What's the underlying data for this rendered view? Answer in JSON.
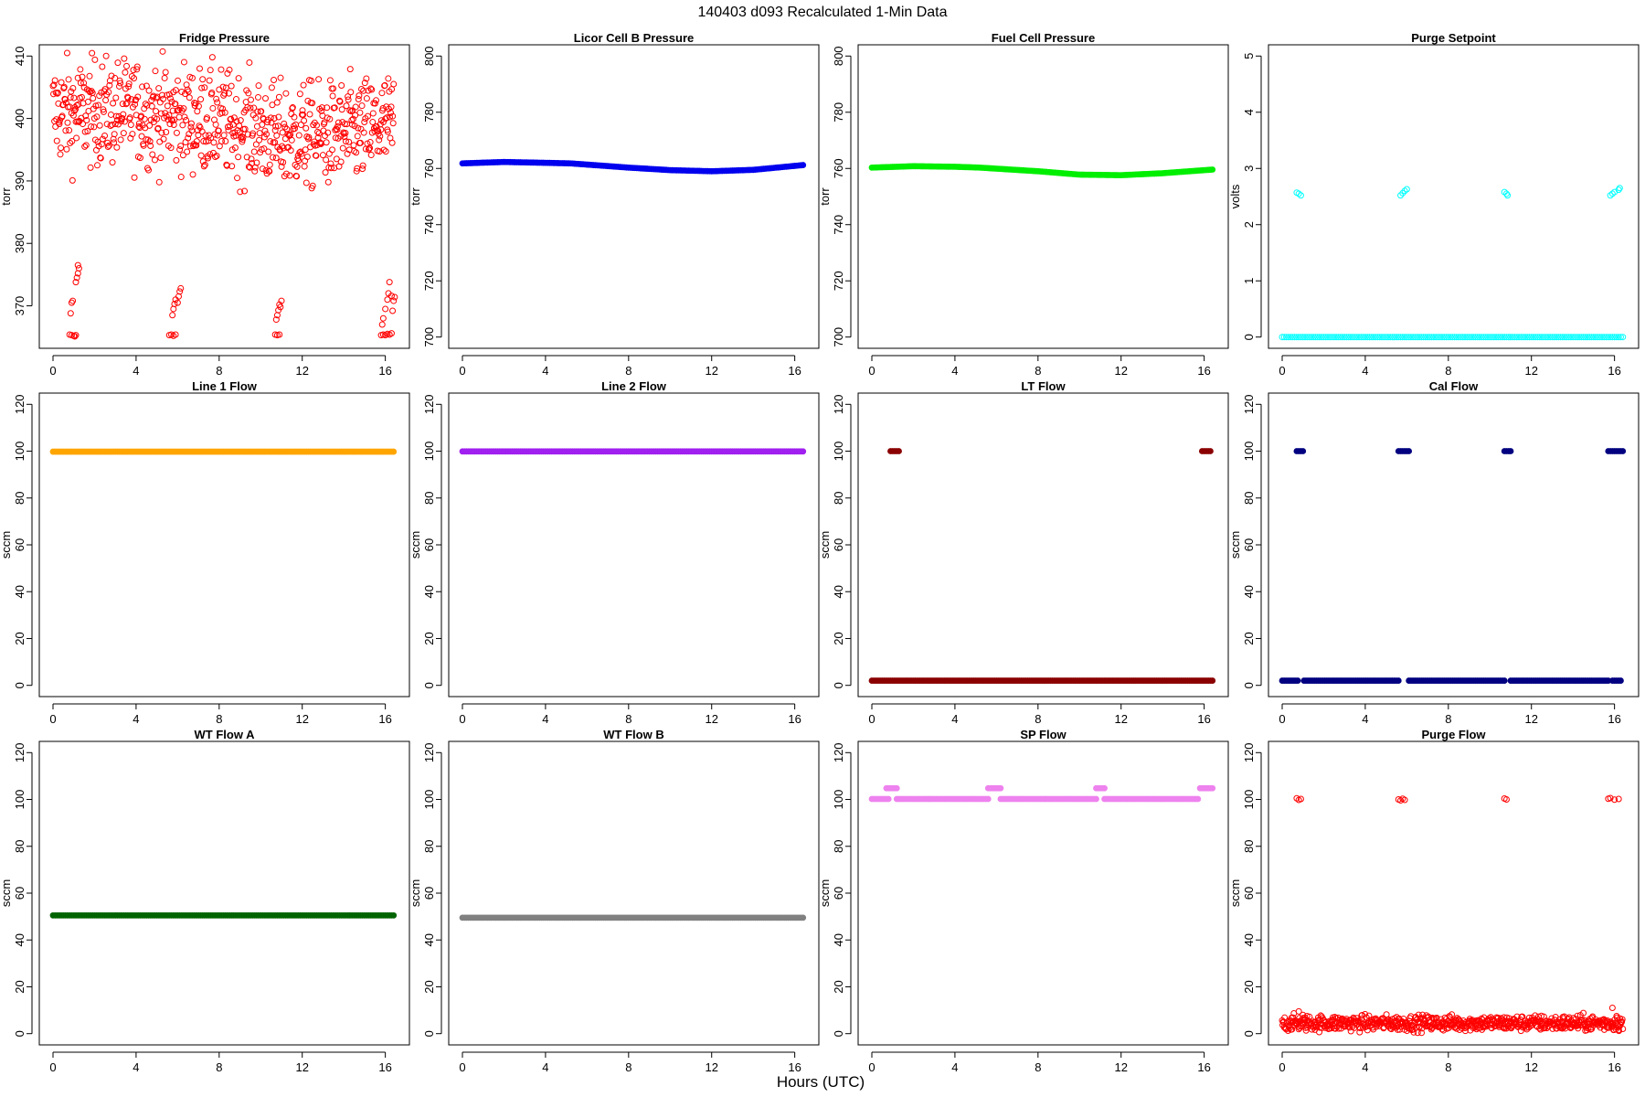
{
  "figure": {
    "title": "140403   d093   Recalculated 1-Min Data",
    "xlabel": "Hours (UTC)"
  },
  "colors": {
    "red": "#ff0000",
    "blue": "#0000ee",
    "green": "#00ee00",
    "cyan": "#00ffff",
    "orange": "#ffa500",
    "purple": "#a020f0",
    "darkred": "#8b0000",
    "navy": "#000080",
    "darkgreen": "#006400",
    "gray": "#808080",
    "violet": "#ee82ee"
  },
  "chart_data": [
    {
      "id": "fridge-pressure",
      "type": "scatter",
      "title": "Fridge Pressure",
      "ylabel": "torr",
      "xlim": [
        0,
        16.5
      ],
      "ylim": [
        365,
        410
      ],
      "xticks": [
        0,
        4,
        8,
        12,
        16
      ],
      "yticks": [
        370,
        380,
        390,
        400,
        410
      ],
      "color": "#ff0000",
      "marker": "open-circle",
      "series": [
        {
          "kind": "noise",
          "x_range": [
            0,
            16.4
          ],
          "y_center": 399.5,
          "y_spread": 5.5,
          "trend": [
            [
              0,
              401
            ],
            [
              4,
              401
            ],
            [
              8,
              399.5
            ],
            [
              11,
              397
            ],
            [
              14,
              397.5
            ],
            [
              16.4,
              399
            ]
          ],
          "n": 700
        },
        {
          "kind": "spikes",
          "points": [
            [
              0.8,
              365.4
            ],
            [
              0.9,
              365.3
            ],
            [
              1.0,
              365.2
            ],
            [
              1.05,
              365.1
            ],
            [
              1.1,
              365.3
            ],
            [
              0.85,
              368.8
            ],
            [
              0.9,
              370.5
            ],
            [
              0.95,
              370.8
            ],
            [
              1.1,
              373.8
            ],
            [
              1.15,
              374.5
            ],
            [
              1.2,
              375.2
            ],
            [
              1.25,
              376.0
            ],
            [
              1.2,
              376.5
            ],
            [
              5.6,
              365.3
            ],
            [
              5.7,
              365.4
            ],
            [
              5.8,
              365.2
            ],
            [
              5.9,
              365.4
            ],
            [
              5.75,
              368.5
            ],
            [
              5.8,
              369.5
            ],
            [
              5.85,
              370.3
            ],
            [
              5.9,
              371.0
            ],
            [
              6.0,
              370.5
            ],
            [
              6.05,
              371.5
            ],
            [
              6.1,
              372.3
            ],
            [
              6.15,
              372.8
            ],
            [
              10.7,
              365.4
            ],
            [
              10.8,
              365.3
            ],
            [
              10.9,
              365.4
            ],
            [
              10.75,
              367.8
            ],
            [
              10.8,
              368.5
            ],
            [
              10.85,
              369.3
            ],
            [
              10.9,
              370.2
            ],
            [
              11.0,
              370.8
            ],
            [
              10.95,
              369.8
            ],
            [
              15.8,
              365.3
            ],
            [
              15.9,
              365.4
            ],
            [
              16.0,
              365.3
            ],
            [
              16.1,
              365.5
            ],
            [
              16.2,
              365.4
            ],
            [
              16.3,
              365.6
            ],
            [
              15.85,
              367.0
            ],
            [
              15.9,
              368.0
            ],
            [
              16.0,
              369.5
            ],
            [
              16.1,
              371.0
            ],
            [
              16.15,
              372.0
            ],
            [
              16.2,
              373.8
            ],
            [
              16.3,
              371.6
            ],
            [
              16.4,
              370.8
            ],
            [
              16.35,
              369.2
            ],
            [
              16.45,
              371.4
            ]
          ]
        }
      ]
    },
    {
      "id": "licor-cell-b-pressure",
      "type": "scatter",
      "title": "Licor Cell B Pressure",
      "ylabel": "torr",
      "xlim": [
        0,
        16.5
      ],
      "ylim": [
        700,
        800
      ],
      "xticks": [
        0,
        4,
        8,
        12,
        16
      ],
      "yticks": [
        700,
        720,
        740,
        760,
        780,
        800
      ],
      "color": "#0000ee",
      "marker": "filled-band",
      "series": [
        {
          "kind": "curve",
          "x_range": [
            0,
            16.4
          ],
          "points": [
            [
              0,
              761.8
            ],
            [
              2,
              762.3
            ],
            [
              4,
              762.0
            ],
            [
              5.2,
              761.8
            ],
            [
              8,
              760.3
            ],
            [
              10,
              759.4
            ],
            [
              12,
              759.0
            ],
            [
              14,
              759.5
            ],
            [
              16.4,
              761.2
            ]
          ]
        }
      ]
    },
    {
      "id": "fuel-cell-pressure",
      "type": "scatter",
      "title": "Fuel Cell Pressure",
      "ylabel": "torr",
      "xlim": [
        0,
        16.5
      ],
      "ylim": [
        700,
        800
      ],
      "xticks": [
        0,
        4,
        8,
        12,
        16
      ],
      "yticks": [
        700,
        720,
        740,
        760,
        780,
        800
      ],
      "color": "#00ee00",
      "marker": "filled-band",
      "series": [
        {
          "kind": "curve",
          "x_range": [
            0,
            16.4
          ],
          "points": [
            [
              0,
              760.3
            ],
            [
              2,
              760.8
            ],
            [
              4,
              760.6
            ],
            [
              5.2,
              760.3
            ],
            [
              8,
              759.0
            ],
            [
              10,
              757.8
            ],
            [
              12,
              757.6
            ],
            [
              14,
              758.3
            ],
            [
              16.4,
              759.6
            ]
          ]
        }
      ]
    },
    {
      "id": "purge-setpoint",
      "type": "scatter",
      "title": "Purge Setpoint",
      "ylabel": "volts",
      "xlim": [
        0,
        16.5
      ],
      "ylim": [
        0,
        5
      ],
      "xticks": [
        0,
        4,
        8,
        12,
        16
      ],
      "yticks": [
        0,
        1,
        2,
        3,
        4,
        5
      ],
      "color": "#00ffff",
      "marker": "open-circle",
      "series": [
        {
          "kind": "flat",
          "x_range": [
            0,
            16.4
          ],
          "y": 0.0
        },
        {
          "kind": "spikes",
          "points": [
            [
              0.7,
              2.57
            ],
            [
              0.8,
              2.55
            ],
            [
              0.9,
              2.52
            ],
            [
              5.7,
              2.52
            ],
            [
              5.8,
              2.56
            ],
            [
              5.9,
              2.6
            ],
            [
              6.0,
              2.63
            ],
            [
              10.7,
              2.58
            ],
            [
              10.8,
              2.55
            ],
            [
              10.85,
              2.52
            ],
            [
              15.8,
              2.52
            ],
            [
              15.9,
              2.55
            ],
            [
              16.0,
              2.58
            ],
            [
              16.2,
              2.62
            ],
            [
              16.25,
              2.65
            ]
          ]
        }
      ]
    },
    {
      "id": "line-1-flow",
      "type": "scatter",
      "title": "Line 1 Flow",
      "ylabel": "sccm",
      "xlim": [
        0,
        16.5
      ],
      "ylim": [
        0,
        120
      ],
      "xticks": [
        0,
        4,
        8,
        12,
        16
      ],
      "yticks": [
        0,
        20,
        40,
        60,
        80,
        100,
        120
      ],
      "color": "#ffa500",
      "marker": "filled-band",
      "series": [
        {
          "kind": "flat",
          "x_range": [
            0,
            16.4
          ],
          "y": 99.8
        }
      ]
    },
    {
      "id": "line-2-flow",
      "type": "scatter",
      "title": "Line 2 Flow",
      "ylabel": "sccm",
      "xlim": [
        0,
        16.5
      ],
      "ylim": [
        0,
        120
      ],
      "xticks": [
        0,
        4,
        8,
        12,
        16
      ],
      "yticks": [
        0,
        20,
        40,
        60,
        80,
        100,
        120
      ],
      "color": "#a020f0",
      "marker": "filled-band",
      "series": [
        {
          "kind": "flat",
          "x_range": [
            0,
            16.4
          ],
          "y": 99.9
        }
      ]
    },
    {
      "id": "lt-flow",
      "type": "scatter",
      "title": "LT Flow",
      "ylabel": "sccm",
      "xlim": [
        0,
        16.5
      ],
      "ylim": [
        0,
        120
      ],
      "xticks": [
        0,
        4,
        8,
        12,
        16
      ],
      "yticks": [
        0,
        20,
        40,
        60,
        80,
        100,
        120
      ],
      "color": "#8b0000",
      "marker": "filled-band",
      "series": [
        {
          "kind": "flat",
          "x_range": [
            0,
            16.4
          ],
          "y": 2.0
        },
        {
          "kind": "seg",
          "x_range": [
            0.9,
            1.3
          ],
          "y": 100.0
        },
        {
          "kind": "seg",
          "x_range": [
            15.9,
            16.3
          ],
          "y": 100.0
        }
      ]
    },
    {
      "id": "cal-flow",
      "type": "scatter",
      "title": "Cal Flow",
      "ylabel": "sccm",
      "xlim": [
        0,
        16.5
      ],
      "ylim": [
        0,
        120
      ],
      "xticks": [
        0,
        4,
        8,
        12,
        16
      ],
      "yticks": [
        0,
        20,
        40,
        60,
        80,
        100,
        120
      ],
      "color": "#000080",
      "marker": "filled-band",
      "series": [
        {
          "kind": "seg",
          "x_range": [
            0,
            0.75
          ],
          "y": 2.0
        },
        {
          "kind": "seg",
          "x_range": [
            1.05,
            5.6
          ],
          "y": 2.0
        },
        {
          "kind": "seg",
          "x_range": [
            6.1,
            10.7
          ],
          "y": 2.0
        },
        {
          "kind": "seg",
          "x_range": [
            11.0,
            15.7
          ],
          "y": 2.0
        },
        {
          "kind": "seg",
          "x_range": [
            15.9,
            16.3
          ],
          "y": 2.0
        },
        {
          "kind": "seg",
          "x_range": [
            0.7,
            1.0
          ],
          "y": 100.0
        },
        {
          "kind": "seg",
          "x_range": [
            5.6,
            6.1
          ],
          "y": 100.0
        },
        {
          "kind": "seg",
          "x_range": [
            10.7,
            11.0
          ],
          "y": 100.0
        },
        {
          "kind": "seg",
          "x_range": [
            15.7,
            16.4
          ],
          "y": 100.0
        }
      ]
    },
    {
      "id": "wt-flow-a",
      "type": "scatter",
      "title": "WT Flow A",
      "ylabel": "sccm",
      "xlim": [
        0,
        16.5
      ],
      "ylim": [
        0,
        120
      ],
      "xticks": [
        0,
        4,
        8,
        12,
        16
      ],
      "yticks": [
        0,
        20,
        40,
        60,
        80,
        100,
        120
      ],
      "color": "#006400",
      "marker": "filled-band",
      "series": [
        {
          "kind": "flat",
          "x_range": [
            0,
            16.4
          ],
          "y": 50.5
        }
      ]
    },
    {
      "id": "wt-flow-b",
      "type": "scatter",
      "title": "WT Flow B",
      "ylabel": "sccm",
      "xlim": [
        0,
        16.5
      ],
      "ylim": [
        0,
        120
      ],
      "xticks": [
        0,
        4,
        8,
        12,
        16
      ],
      "yticks": [
        0,
        20,
        40,
        60,
        80,
        100,
        120
      ],
      "color": "#808080",
      "marker": "filled-band",
      "series": [
        {
          "kind": "flat",
          "x_range": [
            0,
            16.4
          ],
          "y": 49.5
        }
      ]
    },
    {
      "id": "sp-flow",
      "type": "scatter",
      "title": "SP Flow",
      "ylabel": "sccm",
      "xlim": [
        0,
        16.5
      ],
      "ylim": [
        0,
        120
      ],
      "xticks": [
        0,
        4,
        8,
        12,
        16
      ],
      "yticks": [
        0,
        20,
        40,
        60,
        80,
        100,
        120
      ],
      "color": "#ee82ee",
      "marker": "filled-band",
      "series": [
        {
          "kind": "seg",
          "x_range": [
            0,
            0.8
          ],
          "y": 100.2
        },
        {
          "kind": "seg",
          "x_range": [
            1.2,
            5.6
          ],
          "y": 100.2
        },
        {
          "kind": "seg",
          "x_range": [
            6.2,
            10.8
          ],
          "y": 100.2
        },
        {
          "kind": "seg",
          "x_range": [
            11.2,
            15.7
          ],
          "y": 100.2
        },
        {
          "kind": "seg",
          "x_range": [
            0.7,
            1.2
          ],
          "y": 104.8
        },
        {
          "kind": "seg",
          "x_range": [
            5.6,
            6.2
          ],
          "y": 104.8
        },
        {
          "kind": "seg",
          "x_range": [
            10.8,
            11.2
          ],
          "y": 104.8
        },
        {
          "kind": "seg",
          "x_range": [
            15.8,
            16.4
          ],
          "y": 104.8
        }
      ]
    },
    {
      "id": "purge-flow",
      "type": "scatter",
      "title": "Purge Flow",
      "ylabel": "sccm",
      "xlim": [
        0,
        16.5
      ],
      "ylim": [
        0,
        120
      ],
      "xticks": [
        0,
        4,
        8,
        12,
        16
      ],
      "yticks": [
        0,
        20,
        40,
        60,
        80,
        100,
        120
      ],
      "color": "#ff0000",
      "marker": "open-circle",
      "series": [
        {
          "kind": "noise",
          "x_range": [
            0,
            16.4
          ],
          "y_center": 4.5,
          "y_spread": 2.2,
          "trend": [
            [
              0,
              4.5
            ],
            [
              16.4,
              4.5
            ]
          ],
          "n": 700
        },
        {
          "kind": "spikes",
          "points": [
            [
              0.7,
              100.5
            ],
            [
              0.8,
              99.8
            ],
            [
              0.9,
              100.2
            ],
            [
              5.6,
              100.0
            ],
            [
              5.7,
              99.6
            ],
            [
              5.8,
              100.3
            ],
            [
              5.9,
              99.8
            ],
            [
              10.7,
              100.4
            ],
            [
              10.8,
              100.0
            ],
            [
              15.7,
              100.3
            ],
            [
              15.8,
              100.6
            ],
            [
              16.0,
              99.9
            ],
            [
              16.2,
              100.2
            ],
            [
              0.8,
              9.5
            ],
            [
              1.0,
              8.0
            ],
            [
              15.9,
              11.0
            ],
            [
              16.1,
              7.5
            ]
          ]
        }
      ]
    }
  ]
}
